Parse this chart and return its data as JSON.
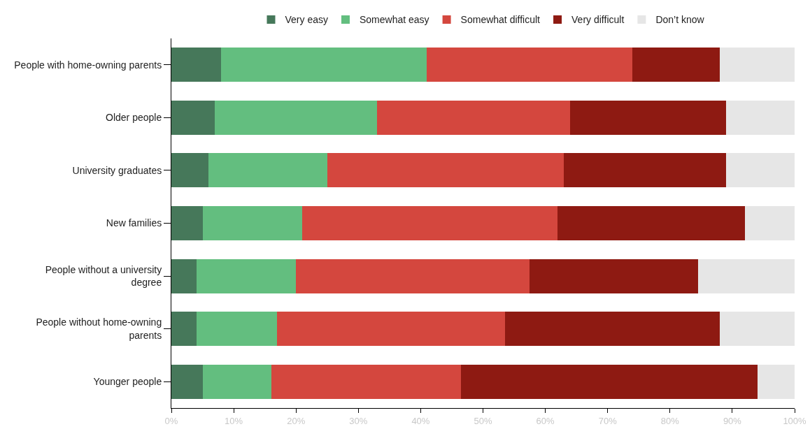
{
  "chart_data": {
    "type": "bar",
    "orientation": "horizontal",
    "stacked": true,
    "legend": "top",
    "grid": false,
    "categories": [
      "People with home-owning parents",
      "Older people",
      "University graduates",
      "New families",
      "People without a university degree",
      "People without home-owning parents",
      "Younger people"
    ],
    "series": [
      {
        "name": "Very easy",
        "color": "#46785a",
        "values": [
          8,
          7,
          6,
          5,
          4,
          4,
          5
        ]
      },
      {
        "name": "Somewhat easy",
        "color": "#63be7f",
        "values": [
          33,
          26,
          19,
          16,
          16,
          13,
          11
        ]
      },
      {
        "name": "Somewhat difficult",
        "color": "#d4473e",
        "values": [
          33,
          31,
          38,
          41,
          37.5,
          36.5,
          30.5
        ]
      },
      {
        "name": "Very difficult",
        "color": "#8e1a12",
        "values": [
          14,
          25,
          26,
          30,
          27,
          34.5,
          47.5
        ]
      },
      {
        "name": "Don’t know",
        "color": "#e6e6e6",
        "values": [
          12,
          11,
          11,
          8,
          15.5,
          12,
          6
        ]
      }
    ],
    "xlim": [
      0,
      100
    ],
    "xticks": [
      {
        "value": 0,
        "label": "0%"
      },
      {
        "value": 10,
        "label": "10%"
      },
      {
        "value": 20,
        "label": "20%"
      },
      {
        "value": 30,
        "label": "30%"
      },
      {
        "value": 40,
        "label": "40%"
      },
      {
        "value": 50,
        "label": "50%"
      },
      {
        "value": 60,
        "label": "60%"
      },
      {
        "value": 70,
        "label": "70%"
      },
      {
        "value": 80,
        "label": "80%"
      },
      {
        "value": 90,
        "label": "90%"
      },
      {
        "value": 100,
        "label": "100%"
      }
    ]
  }
}
